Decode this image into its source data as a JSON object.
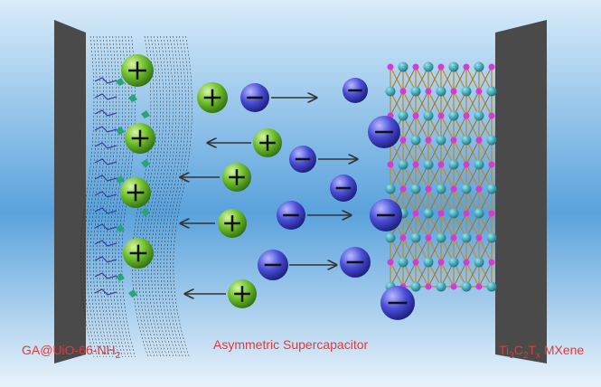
{
  "labels": {
    "left": {
      "text": "GA@UiO-66-NH",
      "sub": "2"
    },
    "center": "Asymmetric Supercapacitor",
    "right": {
      "parts": [
        "Ti",
        "3",
        "C",
        "2",
        "T",
        "x",
        " MXene"
      ]
    }
  }
}
